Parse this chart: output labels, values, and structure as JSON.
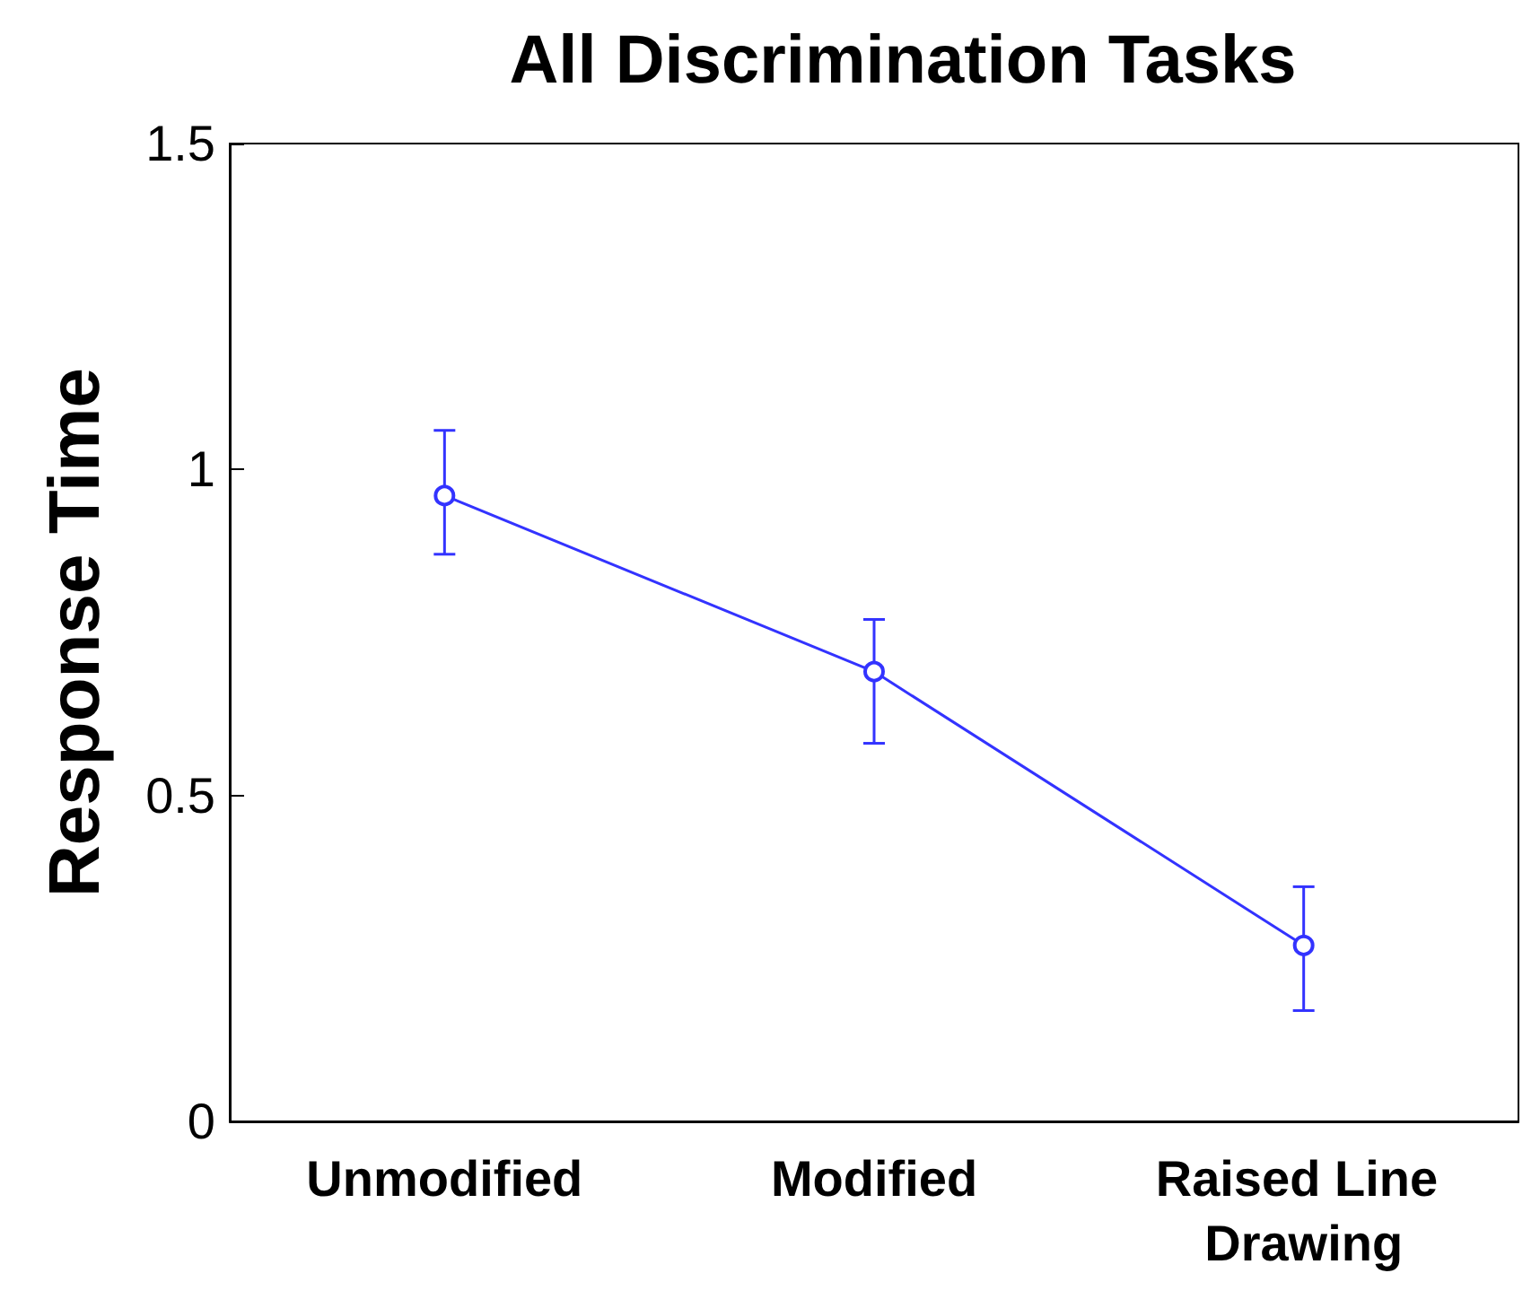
{
  "chart_data": {
    "type": "line",
    "title": "All Discrimination Tasks",
    "ylabel": "Response Time",
    "categories": [
      "Unmodified",
      "Modified",
      "Raised Line Drawing"
    ],
    "series": [
      {
        "color": "#3333ff",
        "values": [
          0.96,
          0.69,
          0.27
        ],
        "errors": [
          [
            0.87,
            1.06
          ],
          [
            0.58,
            0.77
          ],
          [
            0.17,
            0.36
          ]
        ]
      }
    ],
    "ylim": [
      0,
      1.5
    ],
    "yticks": [
      0,
      0.5,
      1,
      1.5
    ],
    "marker": "circle",
    "line_style": "solid"
  }
}
